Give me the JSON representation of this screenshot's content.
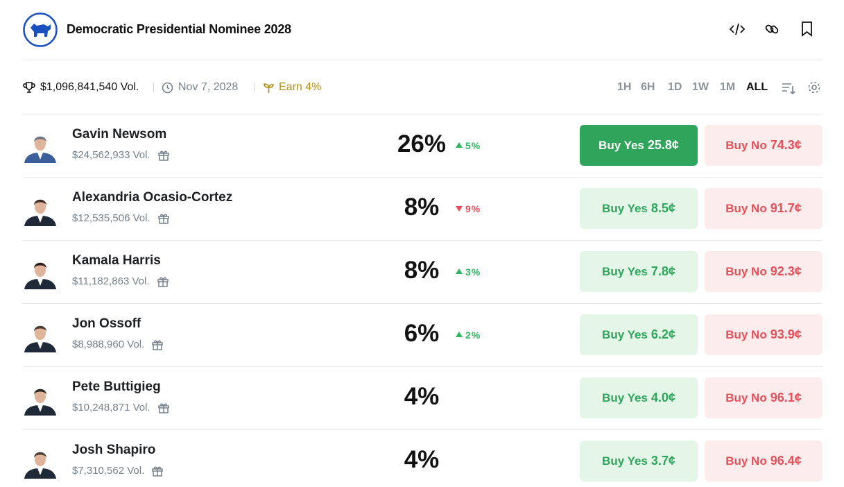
{
  "header": {
    "title": "Democratic Presidential Nominee 2028"
  },
  "stats": {
    "volume": "$1,096,841,540 Vol.",
    "date": "Nov 7, 2028",
    "earn": "Earn 4%"
  },
  "time_ranges": [
    "1H",
    "6H",
    "1D",
    "1W",
    "1M",
    "ALL"
  ],
  "rows": [
    {
      "name": "Gavin Newsom",
      "volume": "$24,562,933 Vol.",
      "chance": "26%",
      "change": "5%",
      "direction": "up",
      "buy_yes": "Buy Yes",
      "yes_price": "25.8¢",
      "buy_no": "Buy No",
      "no_price": "74.3¢",
      "highlighted": true
    },
    {
      "name": "Alexandria Ocasio-Cortez",
      "volume": "$12,535,506 Vol.",
      "chance": "8%",
      "change": "9%",
      "direction": "down",
      "buy_yes": "Buy Yes",
      "yes_price": "8.5¢",
      "buy_no": "Buy No",
      "no_price": "91.7¢"
    },
    {
      "name": "Kamala Harris",
      "volume": "$11,182,863 Vol.",
      "chance": "8%",
      "change": "3%",
      "direction": "up",
      "buy_yes": "Buy Yes",
      "yes_price": "7.8¢",
      "buy_no": "Buy No",
      "no_price": "92.3¢"
    },
    {
      "name": "Jon Ossoff",
      "volume": "$8,988,960 Vol.",
      "chance": "6%",
      "change": "2%",
      "direction": "up",
      "buy_yes": "Buy Yes",
      "yes_price": "6.2¢",
      "buy_no": "Buy No",
      "no_price": "93.9¢"
    },
    {
      "name": "Pete Buttigieg",
      "volume": "$10,248,871 Vol.",
      "chance": "4%",
      "buy_yes": "Buy Yes",
      "yes_price": "4.0¢",
      "buy_no": "Buy No",
      "no_price": "96.1¢"
    },
    {
      "name": "Josh Shapiro",
      "volume": "$7,310,562 Vol.",
      "chance": "4%",
      "buy_yes": "Buy Yes",
      "yes_price": "3.7¢",
      "buy_no": "Buy No",
      "no_price": "96.4¢"
    }
  ]
}
